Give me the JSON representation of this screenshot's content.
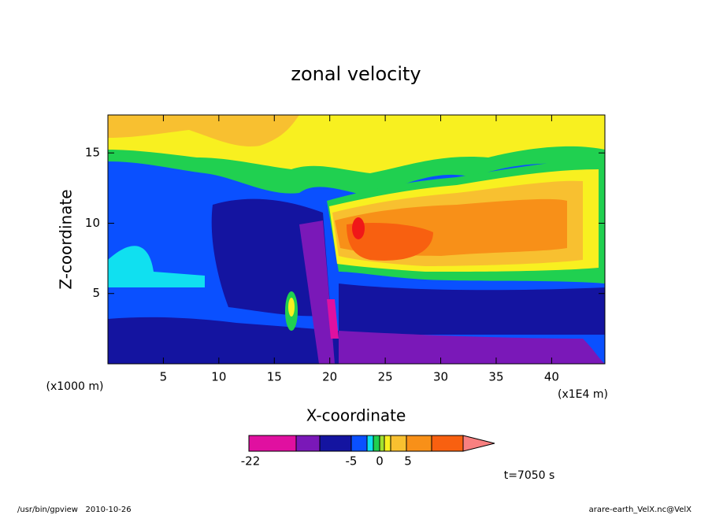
{
  "chart_data": {
    "type": "contour",
    "title": "zonal velocity",
    "x_label": "X-coordinate",
    "y_label": "Z-coordinate",
    "x_unit": "(x1E4 m)",
    "y_unit": "(x1000 m)",
    "xlim": [
      0,
      44.8
    ],
    "xticks": [
      5,
      10,
      15,
      20,
      25,
      30,
      35,
      40
    ],
    "ylim": [
      0,
      17.7
    ],
    "yticks": [
      5,
      10,
      15
    ],
    "colorbar": {
      "colors": [
        "#e010a0",
        "#7a18b8",
        "#1414a0",
        "#0a50ff",
        "#10e0f0",
        "#20d050",
        "#a0e030",
        "#f8f020",
        "#f8c030",
        "#f89018",
        "#f86010",
        "#f01818",
        "#f88080"
      ],
      "labels": [
        -22,
        -5,
        0,
        5
      ]
    },
    "time_label": "t=7050 s",
    "footer_left": "/usr/bin/gpview   2010-10-26",
    "footer_right": "arare-earth_VelX.nc@VelX"
  }
}
